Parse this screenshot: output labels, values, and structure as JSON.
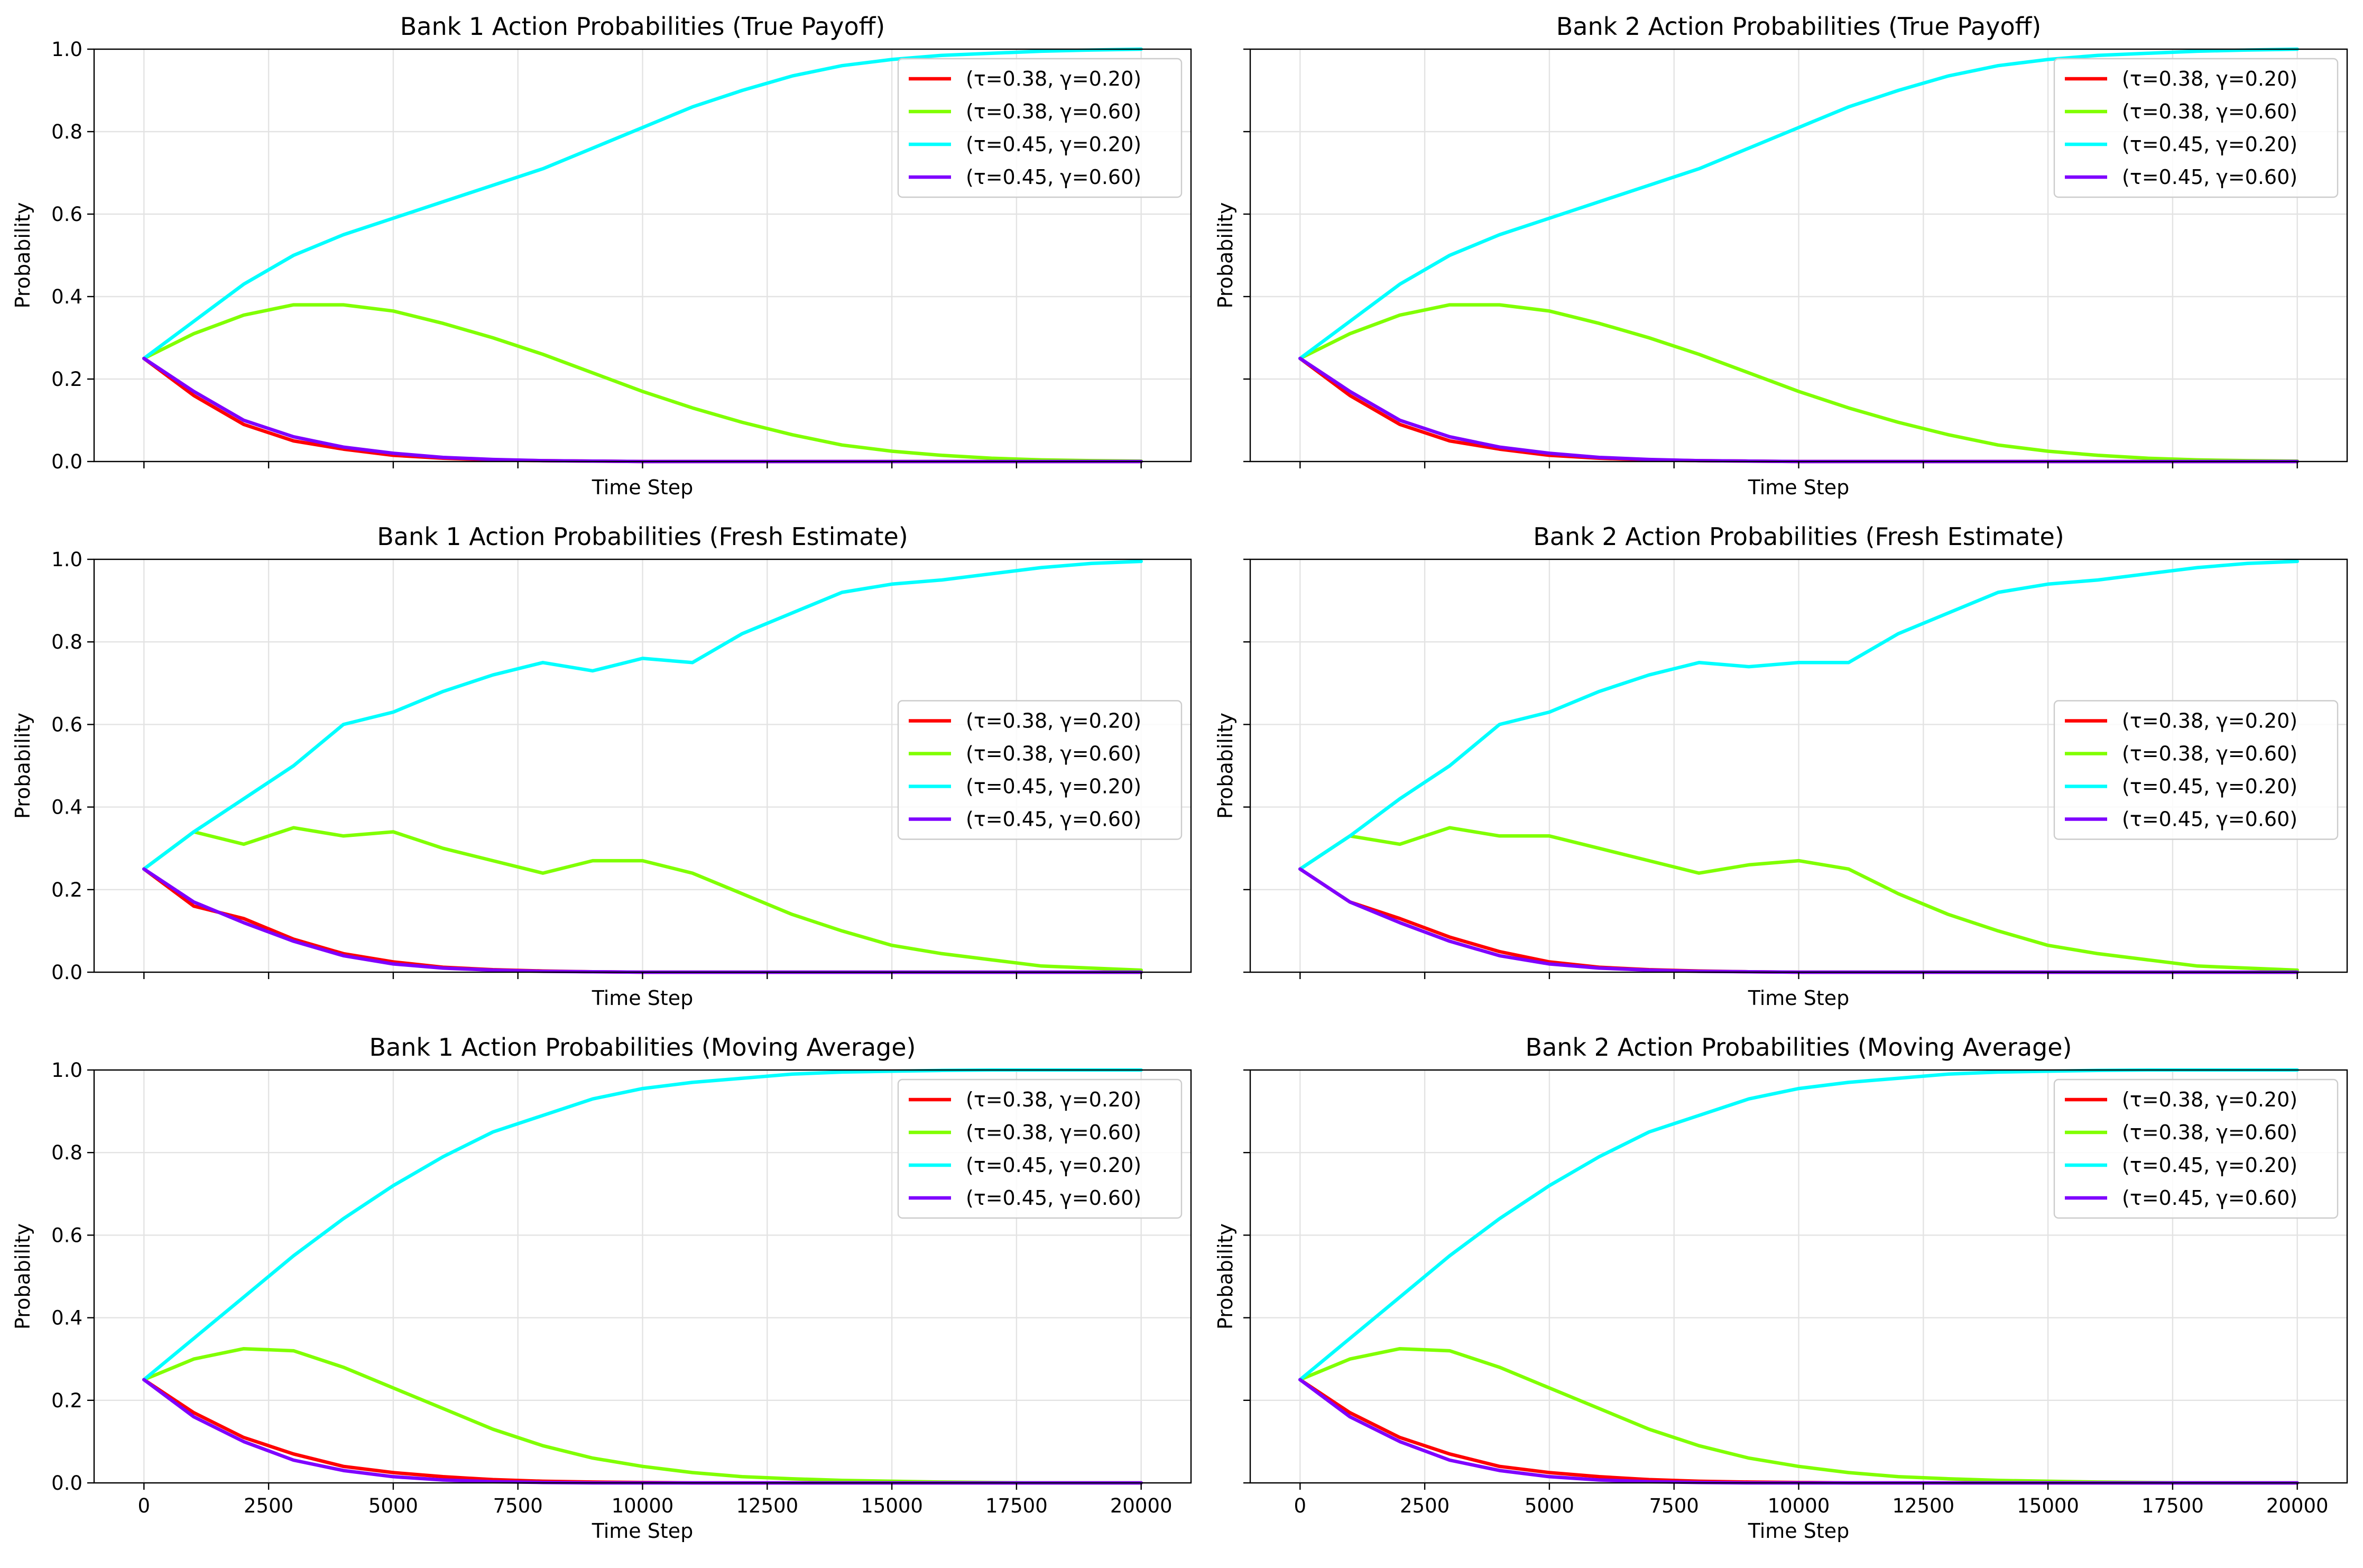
{
  "chart_data": [
    {
      "type": "line",
      "title": "Bank 1 Action Probabilities (True Payoff)",
      "xlabel": "Time Step",
      "ylabel": "Probability",
      "xlim": [
        -1000,
        21000
      ],
      "ylim": [
        0,
        1
      ],
      "grid": true,
      "legend": "upper right",
      "x": [
        0,
        1000,
        2000,
        3000,
        4000,
        5000,
        6000,
        7000,
        8000,
        9000,
        10000,
        11000,
        12000,
        13000,
        14000,
        15000,
        16000,
        17000,
        18000,
        19000,
        20000
      ],
      "series": [
        {
          "name": "(τ=0.38, γ=0.20)",
          "color": "#ff0000",
          "values": [
            0.25,
            0.16,
            0.09,
            0.05,
            0.03,
            0.015,
            0.008,
            0.004,
            0.002,
            0.001,
            0.0,
            0.0,
            0.0,
            0.0,
            0.0,
            0.0,
            0.0,
            0.0,
            0.0,
            0.0,
            0.0
          ]
        },
        {
          "name": "(τ=0.38, γ=0.60)",
          "color": "#80ff00",
          "values": [
            0.25,
            0.31,
            0.355,
            0.38,
            0.38,
            0.365,
            0.335,
            0.3,
            0.26,
            0.215,
            0.17,
            0.13,
            0.095,
            0.065,
            0.04,
            0.025,
            0.015,
            0.008,
            0.004,
            0.002,
            0.001
          ]
        },
        {
          "name": "(τ=0.45, γ=0.20)",
          "color": "#00ffff",
          "values": [
            0.25,
            0.34,
            0.43,
            0.5,
            0.55,
            0.59,
            0.63,
            0.67,
            0.71,
            0.76,
            0.81,
            0.86,
            0.9,
            0.935,
            0.96,
            0.975,
            0.985,
            0.99,
            0.995,
            0.998,
            1.0
          ]
        },
        {
          "name": "(τ=0.45, γ=0.60)",
          "color": "#7f00ff",
          "values": [
            0.25,
            0.17,
            0.1,
            0.06,
            0.035,
            0.02,
            0.01,
            0.005,
            0.002,
            0.001,
            0.0,
            0.0,
            0.0,
            0.0,
            0.0,
            0.0,
            0.0,
            0.0,
            0.0,
            0.0,
            0.0
          ]
        }
      ]
    },
    {
      "type": "line",
      "title": "Bank 2 Action Probabilities (True Payoff)",
      "xlabel": "Time Step",
      "ylabel": "Probability",
      "xlim": [
        -1000,
        21000
      ],
      "ylim": [
        0,
        1
      ],
      "grid": true,
      "legend": "upper right",
      "x": [
        0,
        1000,
        2000,
        3000,
        4000,
        5000,
        6000,
        7000,
        8000,
        9000,
        10000,
        11000,
        12000,
        13000,
        14000,
        15000,
        16000,
        17000,
        18000,
        19000,
        20000
      ],
      "series": [
        {
          "name": "(τ=0.38, γ=0.20)",
          "color": "#ff0000",
          "values": [
            0.25,
            0.16,
            0.09,
            0.05,
            0.03,
            0.015,
            0.008,
            0.004,
            0.002,
            0.001,
            0.0,
            0.0,
            0.0,
            0.0,
            0.0,
            0.0,
            0.0,
            0.0,
            0.0,
            0.0,
            0.0
          ]
        },
        {
          "name": "(τ=0.38, γ=0.60)",
          "color": "#80ff00",
          "values": [
            0.25,
            0.31,
            0.355,
            0.38,
            0.38,
            0.365,
            0.335,
            0.3,
            0.26,
            0.215,
            0.17,
            0.13,
            0.095,
            0.065,
            0.04,
            0.025,
            0.015,
            0.008,
            0.004,
            0.002,
            0.001
          ]
        },
        {
          "name": "(τ=0.45, γ=0.20)",
          "color": "#00ffff",
          "values": [
            0.25,
            0.34,
            0.43,
            0.5,
            0.55,
            0.59,
            0.63,
            0.67,
            0.71,
            0.76,
            0.81,
            0.86,
            0.9,
            0.935,
            0.96,
            0.975,
            0.985,
            0.99,
            0.995,
            0.998,
            1.0
          ]
        },
        {
          "name": "(τ=0.45, γ=0.60)",
          "color": "#7f00ff",
          "values": [
            0.25,
            0.17,
            0.1,
            0.06,
            0.035,
            0.02,
            0.01,
            0.005,
            0.002,
            0.001,
            0.0,
            0.0,
            0.0,
            0.0,
            0.0,
            0.0,
            0.0,
            0.0,
            0.0,
            0.0,
            0.0
          ]
        }
      ]
    },
    {
      "type": "line",
      "title": "Bank 1 Action Probabilities (Fresh Estimate)",
      "xlabel": "Time Step",
      "ylabel": "Probability",
      "xlim": [
        -1000,
        21000
      ],
      "ylim": [
        0,
        1
      ],
      "grid": true,
      "legend": "center right",
      "x": [
        0,
        1000,
        2000,
        3000,
        4000,
        5000,
        6000,
        7000,
        8000,
        9000,
        10000,
        11000,
        12000,
        13000,
        14000,
        15000,
        16000,
        17000,
        18000,
        19000,
        20000
      ],
      "series": [
        {
          "name": "(τ=0.38, γ=0.20)",
          "color": "#ff0000",
          "values": [
            0.25,
            0.16,
            0.13,
            0.08,
            0.045,
            0.025,
            0.012,
            0.006,
            0.003,
            0.001,
            0.0,
            0.0,
            0.0,
            0.0,
            0.0,
            0.0,
            0.0,
            0.0,
            0.0,
            0.0,
            0.0
          ]
        },
        {
          "name": "(τ=0.38, γ=0.60)",
          "color": "#80ff00",
          "values": [
            0.25,
            0.34,
            0.31,
            0.35,
            0.33,
            0.34,
            0.3,
            0.27,
            0.24,
            0.27,
            0.27,
            0.24,
            0.19,
            0.14,
            0.1,
            0.065,
            0.045,
            0.03,
            0.015,
            0.01,
            0.005
          ]
        },
        {
          "name": "(τ=0.45, γ=0.20)",
          "color": "#00ffff",
          "values": [
            0.25,
            0.34,
            0.42,
            0.5,
            0.6,
            0.63,
            0.68,
            0.72,
            0.75,
            0.73,
            0.76,
            0.75,
            0.82,
            0.87,
            0.92,
            0.94,
            0.95,
            0.965,
            0.98,
            0.99,
            0.995
          ]
        },
        {
          "name": "(τ=0.45, γ=0.60)",
          "color": "#7f00ff",
          "values": [
            0.25,
            0.17,
            0.12,
            0.075,
            0.04,
            0.02,
            0.01,
            0.005,
            0.002,
            0.001,
            0.0,
            0.0,
            0.0,
            0.0,
            0.0,
            0.0,
            0.0,
            0.0,
            0.0,
            0.0,
            0.0
          ]
        }
      ]
    },
    {
      "type": "line",
      "title": "Bank 2 Action Probabilities (Fresh Estimate)",
      "xlabel": "Time Step",
      "ylabel": "Probability",
      "xlim": [
        -1000,
        21000
      ],
      "ylim": [
        0,
        1
      ],
      "grid": true,
      "legend": "center right",
      "x": [
        0,
        1000,
        2000,
        3000,
        4000,
        5000,
        6000,
        7000,
        8000,
        9000,
        10000,
        11000,
        12000,
        13000,
        14000,
        15000,
        16000,
        17000,
        18000,
        19000,
        20000
      ],
      "series": [
        {
          "name": "(τ=0.38, γ=0.20)",
          "color": "#ff0000",
          "values": [
            0.25,
            0.17,
            0.13,
            0.085,
            0.05,
            0.025,
            0.012,
            0.006,
            0.003,
            0.001,
            0.0,
            0.0,
            0.0,
            0.0,
            0.0,
            0.0,
            0.0,
            0.0,
            0.0,
            0.0,
            0.0
          ]
        },
        {
          "name": "(τ=0.38, γ=0.60)",
          "color": "#80ff00",
          "values": [
            0.25,
            0.33,
            0.31,
            0.35,
            0.33,
            0.33,
            0.3,
            0.27,
            0.24,
            0.26,
            0.27,
            0.25,
            0.19,
            0.14,
            0.1,
            0.065,
            0.045,
            0.03,
            0.015,
            0.01,
            0.005
          ]
        },
        {
          "name": "(τ=0.45, γ=0.20)",
          "color": "#00ffff",
          "values": [
            0.25,
            0.33,
            0.42,
            0.5,
            0.6,
            0.63,
            0.68,
            0.72,
            0.75,
            0.74,
            0.75,
            0.75,
            0.82,
            0.87,
            0.92,
            0.94,
            0.95,
            0.965,
            0.98,
            0.99,
            0.995
          ]
        },
        {
          "name": "(τ=0.45, γ=0.60)",
          "color": "#7f00ff",
          "values": [
            0.25,
            0.17,
            0.12,
            0.075,
            0.04,
            0.02,
            0.01,
            0.005,
            0.002,
            0.001,
            0.0,
            0.0,
            0.0,
            0.0,
            0.0,
            0.0,
            0.0,
            0.0,
            0.0,
            0.0,
            0.0
          ]
        }
      ]
    },
    {
      "type": "line",
      "title": "Bank 1 Action Probabilities (Moving Average)",
      "xlabel": "Time Step",
      "ylabel": "Probability",
      "xlim": [
        -1000,
        21000
      ],
      "ylim": [
        0,
        1
      ],
      "grid": true,
      "legend": "upper right",
      "x": [
        0,
        1000,
        2000,
        3000,
        4000,
        5000,
        6000,
        7000,
        8000,
        9000,
        10000,
        11000,
        12000,
        13000,
        14000,
        15000,
        16000,
        17000,
        18000,
        19000,
        20000
      ],
      "series": [
        {
          "name": "(τ=0.38, γ=0.20)",
          "color": "#ff0000",
          "values": [
            0.25,
            0.17,
            0.11,
            0.07,
            0.04,
            0.025,
            0.015,
            0.008,
            0.004,
            0.002,
            0.001,
            0.0,
            0.0,
            0.0,
            0.0,
            0.0,
            0.0,
            0.0,
            0.0,
            0.0,
            0.0
          ]
        },
        {
          "name": "(τ=0.38, γ=0.60)",
          "color": "#80ff00",
          "values": [
            0.25,
            0.3,
            0.325,
            0.32,
            0.28,
            0.23,
            0.18,
            0.13,
            0.09,
            0.06,
            0.04,
            0.025,
            0.015,
            0.01,
            0.006,
            0.004,
            0.002,
            0.001,
            0.0,
            0.0,
            0.0
          ]
        },
        {
          "name": "(τ=0.45, γ=0.20)",
          "color": "#00ffff",
          "values": [
            0.25,
            0.35,
            0.45,
            0.55,
            0.64,
            0.72,
            0.79,
            0.85,
            0.89,
            0.93,
            0.955,
            0.97,
            0.98,
            0.99,
            0.995,
            0.997,
            0.999,
            1.0,
            1.0,
            1.0,
            1.0
          ]
        },
        {
          "name": "(τ=0.45, γ=0.60)",
          "color": "#7f00ff",
          "values": [
            0.25,
            0.16,
            0.1,
            0.055,
            0.03,
            0.015,
            0.007,
            0.003,
            0.001,
            0.0,
            0.0,
            0.0,
            0.0,
            0.0,
            0.0,
            0.0,
            0.0,
            0.0,
            0.0,
            0.0,
            0.0
          ]
        }
      ]
    },
    {
      "type": "line",
      "title": "Bank 2 Action Probabilities (Moving Average)",
      "xlabel": "Time Step",
      "ylabel": "Probability",
      "xlim": [
        -1000,
        21000
      ],
      "ylim": [
        0,
        1
      ],
      "grid": true,
      "legend": "upper right",
      "x": [
        0,
        1000,
        2000,
        3000,
        4000,
        5000,
        6000,
        7000,
        8000,
        9000,
        10000,
        11000,
        12000,
        13000,
        14000,
        15000,
        16000,
        17000,
        18000,
        19000,
        20000
      ],
      "series": [
        {
          "name": "(τ=0.38, γ=0.20)",
          "color": "#ff0000",
          "values": [
            0.25,
            0.17,
            0.11,
            0.07,
            0.04,
            0.025,
            0.015,
            0.008,
            0.004,
            0.002,
            0.001,
            0.0,
            0.0,
            0.0,
            0.0,
            0.0,
            0.0,
            0.0,
            0.0,
            0.0,
            0.0
          ]
        },
        {
          "name": "(τ=0.38, γ=0.60)",
          "color": "#80ff00",
          "values": [
            0.25,
            0.3,
            0.325,
            0.32,
            0.28,
            0.23,
            0.18,
            0.13,
            0.09,
            0.06,
            0.04,
            0.025,
            0.015,
            0.01,
            0.006,
            0.004,
            0.002,
            0.001,
            0.0,
            0.0,
            0.0
          ]
        },
        {
          "name": "(τ=0.45, γ=0.20)",
          "color": "#00ffff",
          "values": [
            0.25,
            0.35,
            0.45,
            0.55,
            0.64,
            0.72,
            0.79,
            0.85,
            0.89,
            0.93,
            0.955,
            0.97,
            0.98,
            0.99,
            0.995,
            0.997,
            0.999,
            1.0,
            1.0,
            1.0,
            1.0
          ]
        },
        {
          "name": "(τ=0.45, γ=0.60)",
          "color": "#7f00ff",
          "values": [
            0.25,
            0.16,
            0.1,
            0.055,
            0.03,
            0.015,
            0.007,
            0.003,
            0.001,
            0.0,
            0.0,
            0.0,
            0.0,
            0.0,
            0.0,
            0.0,
            0.0,
            0.0,
            0.0,
            0.0,
            0.0
          ]
        }
      ]
    }
  ],
  "x_ticks": [
    0,
    2500,
    5000,
    7500,
    10000,
    12500,
    15000,
    17500,
    20000
  ],
  "y_ticks": [
    0.0,
    0.2,
    0.4,
    0.6,
    0.8,
    1.0
  ]
}
